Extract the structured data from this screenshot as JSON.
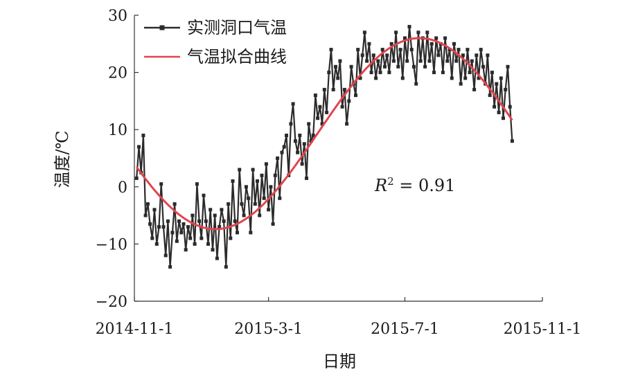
{
  "chart_data": {
    "type": "line",
    "xlabel": "日期",
    "ylabel": "温度/℃",
    "ylim": [
      -20,
      30
    ],
    "yticks": [
      -20,
      -10,
      0,
      10,
      20,
      30
    ],
    "yticklabels": [
      "−20",
      "−10",
      "0",
      "10",
      "20",
      "30"
    ],
    "xlim": [
      "2014-11-01",
      "2015-11-01"
    ],
    "xticks": [
      "2014-11-01",
      "2015-03-01",
      "2015-07-01",
      "2015-11-01"
    ],
    "xticklabels": [
      "2014-11-1",
      "2015-3-1",
      "2015-7-1",
      "2015-11-1"
    ],
    "legend_position": "top-left",
    "annotation": {
      "base": "R",
      "sup": "2",
      "rest": " = 0.91"
    },
    "series": [
      {
        "name": "实测洞口气温",
        "color": "#2b2b2b",
        "marker": "square",
        "points": [
          [
            "2014-11-03",
            1.5
          ],
          [
            "2014-11-05",
            7
          ],
          [
            "2014-11-07",
            2.5
          ],
          [
            "2014-11-09",
            9
          ],
          [
            "2014-11-11",
            -5
          ],
          [
            "2014-11-13",
            -3
          ],
          [
            "2014-11-15",
            -6.5
          ],
          [
            "2014-11-17",
            -9
          ],
          [
            "2014-11-19",
            -4
          ],
          [
            "2014-11-21",
            -10
          ],
          [
            "2014-11-23",
            -7
          ],
          [
            "2014-11-25",
            0.5
          ],
          [
            "2014-11-27",
            -7
          ],
          [
            "2014-11-29",
            -12
          ],
          [
            "2014-12-01",
            -6
          ],
          [
            "2014-12-03",
            -14
          ],
          [
            "2014-12-05",
            -8
          ],
          [
            "2014-12-07",
            -3
          ],
          [
            "2014-12-09",
            -9.5
          ],
          [
            "2014-12-11",
            -6
          ],
          [
            "2014-12-13",
            -8
          ],
          [
            "2014-12-15",
            -6.5
          ],
          [
            "2014-12-17",
            -11
          ],
          [
            "2014-12-19",
            -7
          ],
          [
            "2014-12-21",
            -9
          ],
          [
            "2014-12-23",
            -5
          ],
          [
            "2014-12-25",
            -10
          ],
          [
            "2014-12-27",
            0.5
          ],
          [
            "2014-12-29",
            -6
          ],
          [
            "2014-12-31",
            -9
          ],
          [
            "2015-01-02",
            -1.5
          ],
          [
            "2015-01-04",
            -6
          ],
          [
            "2015-01-06",
            -10
          ],
          [
            "2015-01-08",
            -4
          ],
          [
            "2015-01-10",
            -11
          ],
          [
            "2015-01-12",
            -5
          ],
          [
            "2015-01-14",
            -12.5
          ],
          [
            "2015-01-16",
            -7
          ],
          [
            "2015-01-18",
            -4
          ],
          [
            "2015-01-20",
            -6
          ],
          [
            "2015-01-22",
            -14
          ],
          [
            "2015-01-24",
            -3
          ],
          [
            "2015-01-26",
            -9
          ],
          [
            "2015-01-28",
            1
          ],
          [
            "2015-01-30",
            -6
          ],
          [
            "2015-02-01",
            -8
          ],
          [
            "2015-02-03",
            3
          ],
          [
            "2015-02-05",
            -3
          ],
          [
            "2015-02-07",
            -5
          ],
          [
            "2015-02-09",
            0
          ],
          [
            "2015-02-11",
            -2
          ],
          [
            "2015-02-13",
            -8
          ],
          [
            "2015-02-15",
            3
          ],
          [
            "2015-02-17",
            -3
          ],
          [
            "2015-02-19",
            1
          ],
          [
            "2015-02-21",
            -5
          ],
          [
            "2015-02-23",
            2
          ],
          [
            "2015-02-25",
            -2
          ],
          [
            "2015-02-27",
            4
          ],
          [
            "2015-03-01",
            -4
          ],
          [
            "2015-03-03",
            0
          ],
          [
            "2015-03-05",
            -6.5
          ],
          [
            "2015-03-07",
            2
          ],
          [
            "2015-03-09",
            5
          ],
          [
            "2015-03-11",
            -2
          ],
          [
            "2015-03-13",
            6
          ],
          [
            "2015-03-15",
            7
          ],
          [
            "2015-03-17",
            9
          ],
          [
            "2015-03-19",
            2
          ],
          [
            "2015-03-21",
            11
          ],
          [
            "2015-03-23",
            14.5
          ],
          [
            "2015-03-25",
            8
          ],
          [
            "2015-03-27",
            6
          ],
          [
            "2015-03-29",
            9
          ],
          [
            "2015-03-31",
            4
          ],
          [
            "2015-04-02",
            7.5
          ],
          [
            "2015-04-04",
            1.5
          ],
          [
            "2015-04-06",
            11
          ],
          [
            "2015-04-08",
            8
          ],
          [
            "2015-04-10",
            9
          ],
          [
            "2015-04-12",
            16
          ],
          [
            "2015-04-14",
            12
          ],
          [
            "2015-04-16",
            14
          ],
          [
            "2015-04-18",
            11
          ],
          [
            "2015-04-20",
            17
          ],
          [
            "2015-04-22",
            13
          ],
          [
            "2015-04-24",
            20
          ],
          [
            "2015-04-26",
            24
          ],
          [
            "2015-04-28",
            17
          ],
          [
            "2015-04-30",
            21
          ],
          [
            "2015-05-02",
            19
          ],
          [
            "2015-05-04",
            22
          ],
          [
            "2015-05-06",
            14
          ],
          [
            "2015-05-08",
            17
          ],
          [
            "2015-05-10",
            11
          ],
          [
            "2015-05-12",
            15
          ],
          [
            "2015-05-14",
            21
          ],
          [
            "2015-05-16",
            18
          ],
          [
            "2015-05-18",
            16
          ],
          [
            "2015-05-20",
            24
          ],
          [
            "2015-05-22",
            19
          ],
          [
            "2015-05-24",
            23
          ],
          [
            "2015-05-26",
            27
          ],
          [
            "2015-05-28",
            22
          ],
          [
            "2015-05-30",
            25
          ],
          [
            "2015-06-01",
            20
          ],
          [
            "2015-06-03",
            23
          ],
          [
            "2015-06-05",
            19
          ],
          [
            "2015-06-07",
            22
          ],
          [
            "2015-06-09",
            20
          ],
          [
            "2015-06-11",
            24
          ],
          [
            "2015-06-13",
            21
          ],
          [
            "2015-06-15",
            23
          ],
          [
            "2015-06-17",
            20
          ],
          [
            "2015-06-19",
            25
          ],
          [
            "2015-06-21",
            22
          ],
          [
            "2015-06-23",
            27
          ],
          [
            "2015-06-25",
            21
          ],
          [
            "2015-06-27",
            24
          ],
          [
            "2015-06-29",
            19
          ],
          [
            "2015-07-01",
            26
          ],
          [
            "2015-07-03",
            22
          ],
          [
            "2015-07-05",
            28
          ],
          [
            "2015-07-07",
            24
          ],
          [
            "2015-07-09",
            21
          ],
          [
            "2015-07-11",
            18
          ],
          [
            "2015-07-13",
            27
          ],
          [
            "2015-07-15",
            22
          ],
          [
            "2015-07-17",
            26
          ],
          [
            "2015-07-19",
            21
          ],
          [
            "2015-07-21",
            27
          ],
          [
            "2015-07-23",
            22
          ],
          [
            "2015-07-25",
            25
          ],
          [
            "2015-07-27",
            20
          ],
          [
            "2015-07-29",
            26
          ],
          [
            "2015-07-31",
            23
          ],
          [
            "2015-08-02",
            25
          ],
          [
            "2015-08-04",
            20
          ],
          [
            "2015-08-06",
            26
          ],
          [
            "2015-08-08",
            22
          ],
          [
            "2015-08-10",
            24
          ],
          [
            "2015-08-12",
            19
          ],
          [
            "2015-08-14",
            25
          ],
          [
            "2015-08-16",
            22
          ],
          [
            "2015-08-18",
            24
          ],
          [
            "2015-08-20",
            18
          ],
          [
            "2015-08-22",
            23
          ],
          [
            "2015-08-24",
            19
          ],
          [
            "2015-08-26",
            24
          ],
          [
            "2015-08-28",
            20
          ],
          [
            "2015-08-30",
            22
          ],
          [
            "2015-09-01",
            17
          ],
          [
            "2015-09-03",
            23
          ],
          [
            "2015-09-05",
            19
          ],
          [
            "2015-09-07",
            24
          ],
          [
            "2015-09-09",
            21
          ],
          [
            "2015-09-11",
            18
          ],
          [
            "2015-09-13",
            23
          ],
          [
            "2015-09-15",
            16
          ],
          [
            "2015-09-17",
            20
          ],
          [
            "2015-09-19",
            14
          ],
          [
            "2015-09-21",
            18
          ],
          [
            "2015-09-23",
            13
          ],
          [
            "2015-09-25",
            19
          ],
          [
            "2015-09-27",
            12
          ],
          [
            "2015-09-29",
            17
          ],
          [
            "2015-10-01",
            21
          ],
          [
            "2015-10-03",
            14
          ],
          [
            "2015-10-05",
            8
          ]
        ]
      },
      {
        "name": "气温拟合曲线",
        "color": "#e0454f",
        "fit": {
          "form": "sine",
          "mean": 9.3,
          "amplitude": 16.7,
          "peak_date": "2015-07-14",
          "period_days": 365
        },
        "x_range": [
          "2014-11-03",
          "2015-10-05"
        ]
      }
    ]
  }
}
